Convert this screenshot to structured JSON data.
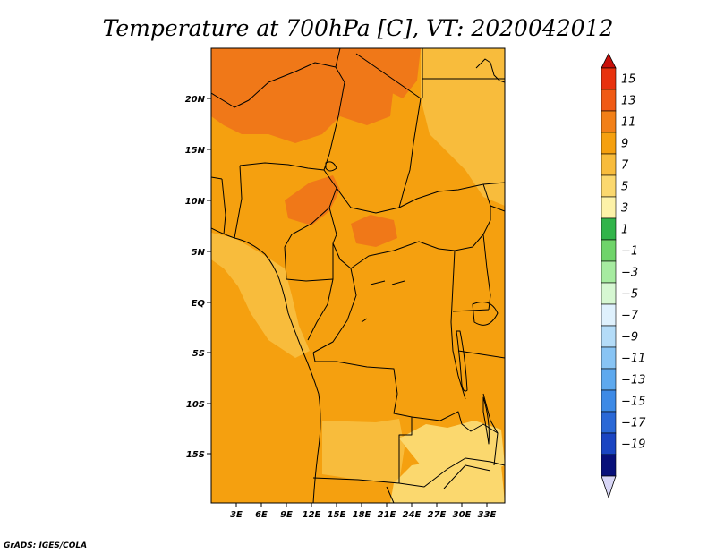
{
  "title": "Temperature at 700hPa [C], VT: 2020042012",
  "credit": "GrADS: IGES/COLA",
  "map": {
    "lat_labels": [
      "20N",
      "15N",
      "10N",
      "5N",
      "EQ",
      "5S",
      "10S",
      "15S"
    ],
    "lon_labels": [
      "3E",
      "6E",
      "9E",
      "12E",
      "15E",
      "18E",
      "21E",
      "24E",
      "27E",
      "30E",
      "33E"
    ],
    "base_color": "#f5a00f",
    "field_regions": [
      {
        "label": "11-13",
        "color": "#f07818"
      },
      {
        "label": "11-13",
        "color": "#f07818"
      },
      {
        "label": "11-13",
        "color": "#f07818"
      },
      {
        "label": "11-13",
        "color": "#f07818"
      },
      {
        "label": "7-9",
        "color": "#f8bc3c"
      },
      {
        "label": "7-9",
        "color": "#f8bc3c"
      },
      {
        "label": "7-9",
        "color": "#f8bc3c"
      },
      {
        "label": "5-7",
        "color": "#fbd86e"
      },
      {
        "label": "5-7",
        "color": "#fbd86e"
      }
    ]
  },
  "colorbar": {
    "labels": [
      "15",
      "13",
      "11",
      "9",
      "7",
      "5",
      "3",
      "1",
      "−1",
      "−3",
      "−5",
      "−7",
      "−9",
      "−11",
      "−13",
      "−15",
      "−17",
      "−19"
    ],
    "colors": [
      "#e8320e",
      "#f05a14",
      "#f28018",
      "#f5a00f",
      "#f8bc3c",
      "#fbd86e",
      "#fdf2a8",
      "#31b44a",
      "#6fd46a",
      "#a6eba0",
      "#d6f7d2",
      "#dff1fd",
      "#b4dcf8",
      "#88c4f4",
      "#5ea9ee",
      "#3d8ae6",
      "#2a68d6",
      "#1a45c2",
      "#08107a"
    ],
    "top_cap_color": "#c8100a",
    "bottom_cap_color": "#d8d6f6"
  }
}
